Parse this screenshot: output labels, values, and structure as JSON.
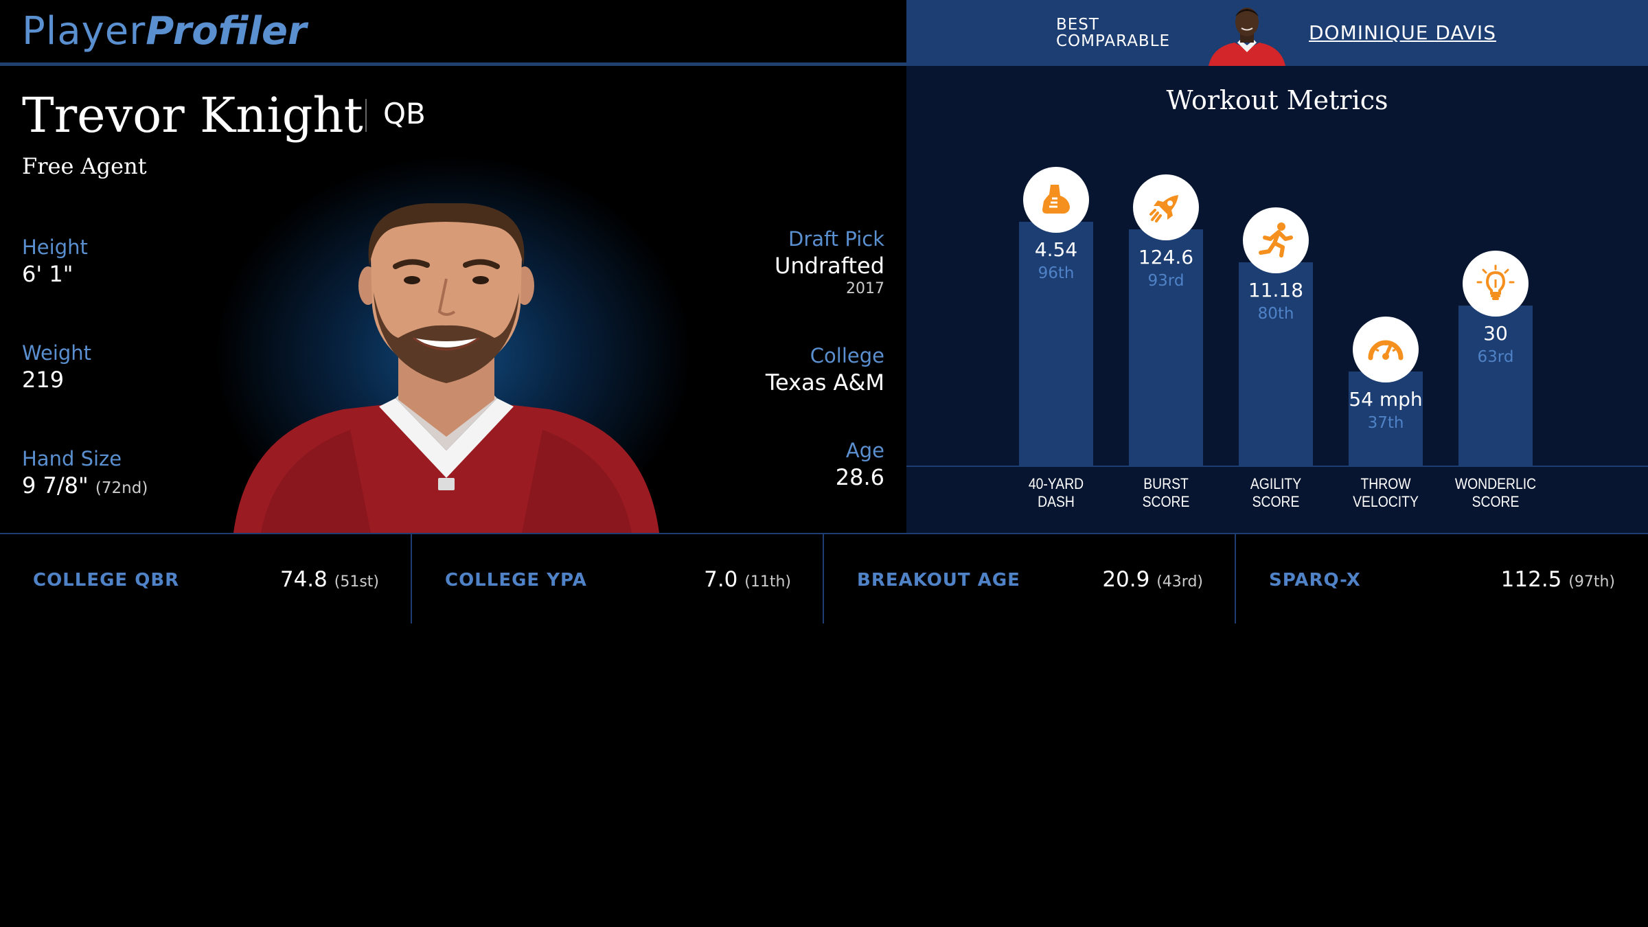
{
  "header": {
    "logo_part1": "Player",
    "logo_part2": "Profiler",
    "best_comparable_label_line1": "BEST",
    "best_comparable_label_line2": "COMPARABLE",
    "best_comparable_name": "DOMINIQUE DAVIS"
  },
  "player": {
    "name": "Trevor Knight",
    "position": "QB",
    "team": "Free Agent",
    "height_label": "Height",
    "height": "6' 1\"",
    "weight_label": "Weight",
    "weight": "219",
    "hand_size_label": "Hand Size",
    "hand_size": "9 7/8\"",
    "hand_size_rank": "(72nd)",
    "draft_pick_label": "Draft Pick",
    "draft_pick": "Undrafted",
    "draft_year": "2017",
    "college_label": "College",
    "college": "Texas A&M",
    "age_label": "Age",
    "age": "28.6"
  },
  "workout": {
    "title": "Workout Metrics",
    "metrics": [
      {
        "label1": "40-YARD",
        "label2": "DASH",
        "value": "4.54",
        "percentile": "96th",
        "pct_num": 96,
        "icon": "shoe-icon"
      },
      {
        "label1": "BURST",
        "label2": "SCORE",
        "value": "124.6",
        "percentile": "93rd",
        "pct_num": 93,
        "icon": "rocket-icon"
      },
      {
        "label1": "AGILITY",
        "label2": "SCORE",
        "value": "11.18",
        "percentile": "80th",
        "pct_num": 80,
        "icon": "runner-icon"
      },
      {
        "label1": "THROW",
        "label2": "VELOCITY",
        "value": "54 mph",
        "percentile": "37th",
        "pct_num": 37,
        "icon": "speedometer-icon"
      },
      {
        "label1": "WONDERLIC",
        "label2": "SCORE",
        "value": "30",
        "percentile": "63rd",
        "pct_num": 63,
        "icon": "lightbulb-icon"
      }
    ]
  },
  "college_stats": [
    {
      "label": "COLLEGE QBR",
      "value": "74.8",
      "rank": "(51st)"
    },
    {
      "label": "COLLEGE YPA",
      "value": "7.0",
      "rank": "(11th)"
    },
    {
      "label": "BREAKOUT AGE",
      "value": "20.9",
      "rank": "(43rd)"
    },
    {
      "label": "SPARQ-X",
      "value": "112.5",
      "rank": "(97th)"
    }
  ],
  "colors": {
    "accent": "#5a8fd0",
    "bar": "#1d3e72",
    "panel": "#071530",
    "icon": "#f5901e"
  }
}
